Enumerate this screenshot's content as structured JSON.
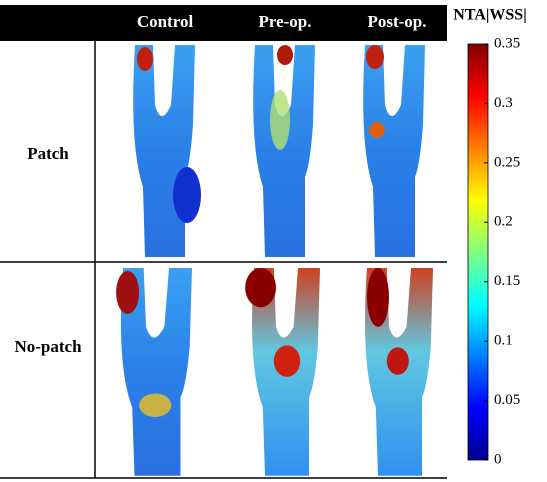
{
  "header": {
    "columns": [
      "Control",
      "Pre-op.",
      "Post-op."
    ]
  },
  "rows": [
    {
      "label": "Patch"
    },
    {
      "label": "No-patch"
    }
  ],
  "colorbar": {
    "title": "NTA|WSS|",
    "lim": [
      0,
      0.35
    ],
    "ticks": [
      0,
      0.05,
      0.1,
      0.15,
      0.2,
      0.25,
      0.3,
      0.35
    ]
  }
}
